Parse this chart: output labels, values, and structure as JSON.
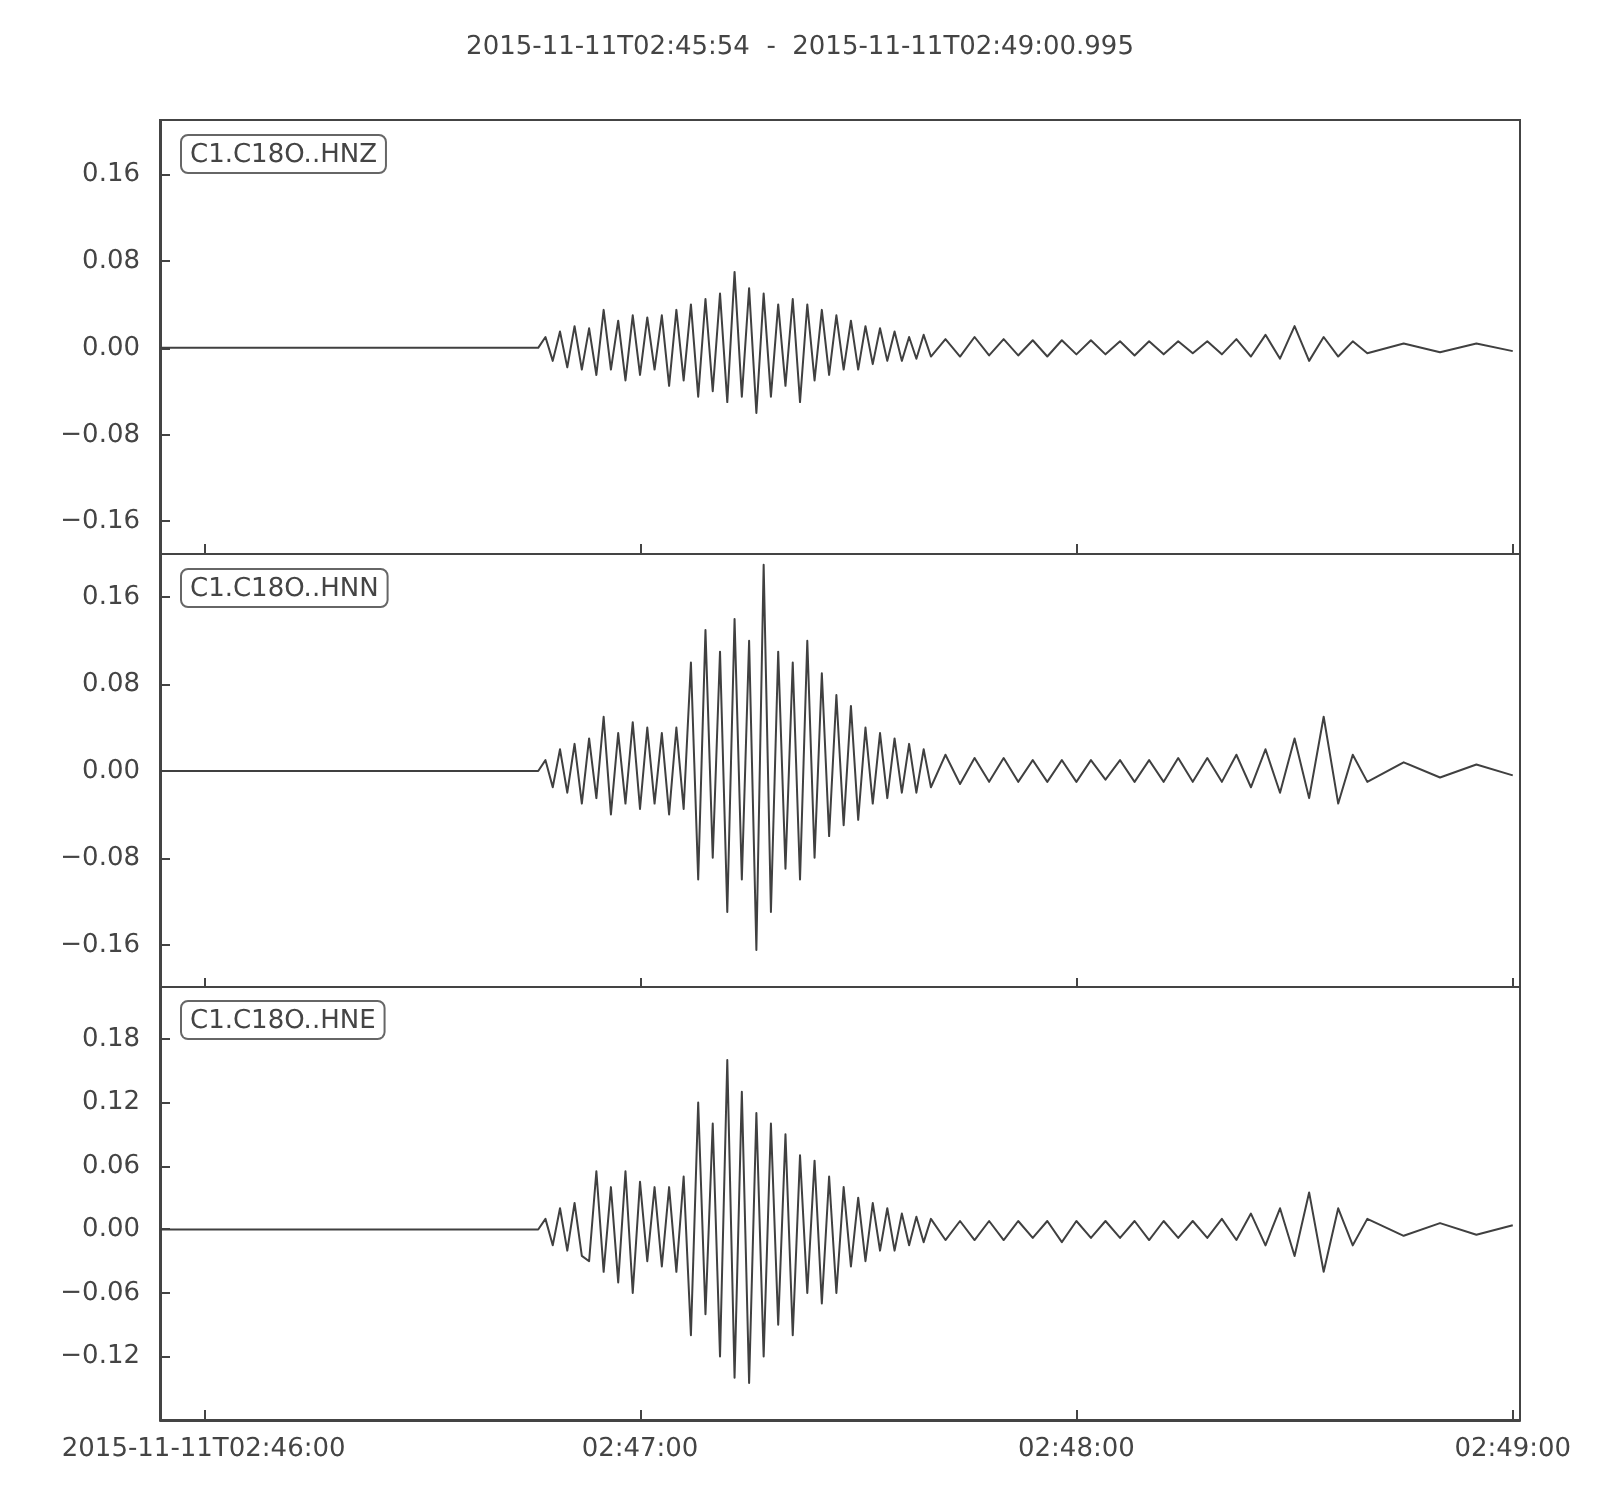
{
  "chart_data": [
    {
      "type": "line",
      "title": "2015-11-11T02:45:54  -  2015-11-11T02:49:00.995",
      "annotations": [
        "C1.C18O..HNZ"
      ],
      "tick_labels": "y",
      "xlim": [
        "2015-11-11T02:45:54",
        "2015-11-11T02:49:00.995"
      ],
      "xticks": [
        {
          "value": "2015-11-11T02:46:00",
          "label": null
        },
        {
          "value": "2015-11-11T02:47:00",
          "label": null
        },
        {
          "value": "2015-11-11T02:48:00",
          "label": null
        },
        {
          "value": "2015-11-11T02:49:00",
          "label": null
        }
      ],
      "ylim": [
        -0.19,
        0.21
      ],
      "yticks": [
        {
          "value": -0.16,
          "label": "−0.16"
        },
        {
          "value": -0.08,
          "label": "−0.08"
        },
        {
          "value": 0,
          "label": "0.00"
        },
        {
          "value": 0.08,
          "label": "0.08"
        },
        {
          "value": 0.16,
          "label": "0.16"
        }
      ],
      "series": [
        {
          "color": "#404040",
          "x": [
            "2015-11-11T02:45:54",
            "2015-11-11T02:46:46",
            "2015-11-11T02:46:47",
            "2015-11-11T02:46:48",
            "2015-11-11T02:46:49",
            "2015-11-11T02:46:50",
            "2015-11-11T02:46:51",
            "2015-11-11T02:46:52",
            "2015-11-11T02:46:53",
            "2015-11-11T02:46:54",
            "2015-11-11T02:46:55",
            "2015-11-11T02:46:56",
            "2015-11-11T02:46:57",
            "2015-11-11T02:46:58",
            "2015-11-11T02:46:59",
            "2015-11-11T02:47:00",
            "2015-11-11T02:47:01",
            "2015-11-11T02:47:02",
            "2015-11-11T02:47:03",
            "2015-11-11T02:47:04",
            "2015-11-11T02:47:05",
            "2015-11-11T02:47:06",
            "2015-11-11T02:47:07",
            "2015-11-11T02:47:08",
            "2015-11-11T02:47:09",
            "2015-11-11T02:47:10",
            "2015-11-11T02:47:11",
            "2015-11-11T02:47:12",
            "2015-11-11T02:47:13",
            "2015-11-11T02:47:14",
            "2015-11-11T02:47:15",
            "2015-11-11T02:47:16",
            "2015-11-11T02:47:17",
            "2015-11-11T02:47:18",
            "2015-11-11T02:47:19",
            "2015-11-11T02:47:20",
            "2015-11-11T02:47:21",
            "2015-11-11T02:47:22",
            "2015-11-11T02:47:23",
            "2015-11-11T02:47:24",
            "2015-11-11T02:47:25",
            "2015-11-11T02:47:26",
            "2015-11-11T02:47:27",
            "2015-11-11T02:47:28",
            "2015-11-11T02:47:29",
            "2015-11-11T02:47:30",
            "2015-11-11T02:47:31",
            "2015-11-11T02:47:32",
            "2015-11-11T02:47:33",
            "2015-11-11T02:47:34",
            "2015-11-11T02:47:35",
            "2015-11-11T02:47:36",
            "2015-11-11T02:47:37",
            "2015-11-11T02:47:38",
            "2015-11-11T02:47:39",
            "2015-11-11T02:47:40",
            "2015-11-11T02:47:42",
            "2015-11-11T02:47:44",
            "2015-11-11T02:47:46",
            "2015-11-11T02:47:48",
            "2015-11-11T02:47:50",
            "2015-11-11T02:47:52",
            "2015-11-11T02:47:54",
            "2015-11-11T02:47:56",
            "2015-11-11T02:47:58",
            "2015-11-11T02:48:00",
            "2015-11-11T02:48:02",
            "2015-11-11T02:48:04",
            "2015-11-11T02:48:06",
            "2015-11-11T02:48:08",
            "2015-11-11T02:48:10",
            "2015-11-11T02:48:12",
            "2015-11-11T02:48:14",
            "2015-11-11T02:48:16",
            "2015-11-11T02:48:18",
            "2015-11-11T02:48:20",
            "2015-11-11T02:48:22",
            "2015-11-11T02:48:24",
            "2015-11-11T02:48:26",
            "2015-11-11T02:48:28",
            "2015-11-11T02:48:30",
            "2015-11-11T02:48:32",
            "2015-11-11T02:48:34",
            "2015-11-11T02:48:36",
            "2015-11-11T02:48:38",
            "2015-11-11T02:48:40",
            "2015-11-11T02:48:45",
            "2015-11-11T02:48:50",
            "2015-11-11T02:48:55",
            "2015-11-11T02:49:00"
          ],
          "values": [
            0,
            0,
            0.01,
            -0.012,
            0.015,
            -0.018,
            0.02,
            -0.02,
            0.018,
            -0.025,
            0.035,
            -0.02,
            0.025,
            -0.03,
            0.03,
            -0.025,
            0.028,
            -0.02,
            0.03,
            -0.035,
            0.035,
            -0.03,
            0.04,
            -0.045,
            0.045,
            -0.04,
            0.05,
            -0.05,
            0.07,
            -0.045,
            0.055,
            -0.06,
            0.05,
            -0.045,
            0.04,
            -0.035,
            0.045,
            -0.05,
            0.04,
            -0.03,
            0.035,
            -0.025,
            0.03,
            -0.02,
            0.025,
            -0.02,
            0.02,
            -0.015,
            0.018,
            -0.012,
            0.015,
            -0.012,
            0.01,
            -0.01,
            0.012,
            -0.008,
            0.008,
            -0.008,
            0.01,
            -0.007,
            0.008,
            -0.007,
            0.007,
            -0.008,
            0.007,
            -0.006,
            0.007,
            -0.006,
            0.006,
            -0.007,
            0.006,
            -0.006,
            0.006,
            -0.005,
            0.006,
            -0.006,
            0.008,
            -0.008,
            0.012,
            -0.01,
            0.02,
            -0.012,
            0.01,
            -0.008,
            0.006,
            -0.005,
            0.004,
            -0.004,
            0.004,
            -0.003
          ]
        }
      ]
    },
    {
      "type": "line",
      "annotations": [
        "C1.C18O..HNN"
      ],
      "tick_labels": "y",
      "xlim": [
        "2015-11-11T02:45:54",
        "2015-11-11T02:49:00.995"
      ],
      "xticks": [
        {
          "value": "2015-11-11T02:46:00",
          "label": null
        },
        {
          "value": "2015-11-11T02:47:00",
          "label": null
        },
        {
          "value": "2015-11-11T02:48:00",
          "label": null
        },
        {
          "value": "2015-11-11T02:49:00",
          "label": null
        }
      ],
      "ylim": [
        -0.2,
        0.2
      ],
      "yticks": [
        {
          "value": -0.16,
          "label": "−0.16"
        },
        {
          "value": -0.08,
          "label": "−0.08"
        },
        {
          "value": 0,
          "label": "0.00"
        },
        {
          "value": 0.08,
          "label": "0.08"
        },
        {
          "value": 0.16,
          "label": "0.16"
        }
      ],
      "series": [
        {
          "color": "#404040",
          "x": [
            "2015-11-11T02:45:54",
            "2015-11-11T02:46:46",
            "2015-11-11T02:46:47",
            "2015-11-11T02:46:48",
            "2015-11-11T02:46:49",
            "2015-11-11T02:46:50",
            "2015-11-11T02:46:51",
            "2015-11-11T02:46:52",
            "2015-11-11T02:46:53",
            "2015-11-11T02:46:54",
            "2015-11-11T02:46:55",
            "2015-11-11T02:46:56",
            "2015-11-11T02:46:57",
            "2015-11-11T02:46:58",
            "2015-11-11T02:46:59",
            "2015-11-11T02:47:00",
            "2015-11-11T02:47:01",
            "2015-11-11T02:47:02",
            "2015-11-11T02:47:03",
            "2015-11-11T02:47:04",
            "2015-11-11T02:47:05",
            "2015-11-11T02:47:06",
            "2015-11-11T02:47:07",
            "2015-11-11T02:47:08",
            "2015-11-11T02:47:09",
            "2015-11-11T02:47:10",
            "2015-11-11T02:47:11",
            "2015-11-11T02:47:12",
            "2015-11-11T02:47:13",
            "2015-11-11T02:47:14",
            "2015-11-11T02:47:15",
            "2015-11-11T02:47:16",
            "2015-11-11T02:47:17",
            "2015-11-11T02:47:18",
            "2015-11-11T02:47:19",
            "2015-11-11T02:47:20",
            "2015-11-11T02:47:21",
            "2015-11-11T02:47:22",
            "2015-11-11T02:47:23",
            "2015-11-11T02:47:24",
            "2015-11-11T02:47:25",
            "2015-11-11T02:47:26",
            "2015-11-11T02:47:27",
            "2015-11-11T02:47:28",
            "2015-11-11T02:47:29",
            "2015-11-11T02:47:30",
            "2015-11-11T02:47:31",
            "2015-11-11T02:47:32",
            "2015-11-11T02:47:33",
            "2015-11-11T02:47:34",
            "2015-11-11T02:47:35",
            "2015-11-11T02:47:36",
            "2015-11-11T02:47:37",
            "2015-11-11T02:47:38",
            "2015-11-11T02:47:39",
            "2015-11-11T02:47:40",
            "2015-11-11T02:47:42",
            "2015-11-11T02:47:44",
            "2015-11-11T02:47:46",
            "2015-11-11T02:47:48",
            "2015-11-11T02:47:50",
            "2015-11-11T02:47:52",
            "2015-11-11T02:47:54",
            "2015-11-11T02:47:56",
            "2015-11-11T02:47:58",
            "2015-11-11T02:48:00",
            "2015-11-11T02:48:02",
            "2015-11-11T02:48:04",
            "2015-11-11T02:48:06",
            "2015-11-11T02:48:08",
            "2015-11-11T02:48:10",
            "2015-11-11T02:48:12",
            "2015-11-11T02:48:14",
            "2015-11-11T02:48:16",
            "2015-11-11T02:48:18",
            "2015-11-11T02:48:20",
            "2015-11-11T02:48:22",
            "2015-11-11T02:48:24",
            "2015-11-11T02:48:26",
            "2015-11-11T02:48:28",
            "2015-11-11T02:48:30",
            "2015-11-11T02:48:32",
            "2015-11-11T02:48:34",
            "2015-11-11T02:48:36",
            "2015-11-11T02:48:38",
            "2015-11-11T02:48:40",
            "2015-11-11T02:48:45",
            "2015-11-11T02:48:50",
            "2015-11-11T02:48:55",
            "2015-11-11T02:49:00"
          ],
          "values": [
            0,
            0,
            0.01,
            -0.015,
            0.02,
            -0.02,
            0.025,
            -0.03,
            0.03,
            -0.025,
            0.05,
            -0.04,
            0.035,
            -0.03,
            0.045,
            -0.035,
            0.04,
            -0.03,
            0.035,
            -0.04,
            0.04,
            -0.035,
            0.1,
            -0.1,
            0.13,
            -0.08,
            0.11,
            -0.13,
            0.14,
            -0.1,
            0.12,
            -0.165,
            0.19,
            -0.13,
            0.11,
            -0.09,
            0.1,
            -0.1,
            0.12,
            -0.08,
            0.09,
            -0.06,
            0.07,
            -0.05,
            0.06,
            -0.045,
            0.04,
            -0.03,
            0.035,
            -0.025,
            0.03,
            -0.02,
            0.025,
            -0.02,
            0.02,
            -0.015,
            0.015,
            -0.012,
            0.012,
            -0.01,
            0.012,
            -0.01,
            0.01,
            -0.01,
            0.01,
            -0.01,
            0.01,
            -0.008,
            0.01,
            -0.01,
            0.01,
            -0.01,
            0.012,
            -0.01,
            0.012,
            -0.01,
            0.015,
            -0.015,
            0.02,
            -0.02,
            0.03,
            -0.025,
            0.05,
            -0.03,
            0.015,
            -0.01,
            0.008,
            -0.006,
            0.006,
            -0.004
          ]
        }
      ]
    },
    {
      "type": "line",
      "annotations": [
        "C1.C18O..HNE"
      ],
      "xlim": [
        "2015-11-11T02:45:54",
        "2015-11-11T02:49:00.995"
      ],
      "xticks": [
        {
          "value": "2015-11-11T02:46:00",
          "label": "2015-11-11T02:46:00"
        },
        {
          "value": "2015-11-11T02:47:00",
          "label": "02:47:00"
        },
        {
          "value": "2015-11-11T02:48:00",
          "label": "02:48:00"
        },
        {
          "value": "2015-11-11T02:49:00",
          "label": "02:49:00"
        }
      ],
      "ylim": [
        -0.18,
        0.23
      ],
      "yticks": [
        {
          "value": -0.12,
          "label": "−0.12"
        },
        {
          "value": -0.06,
          "label": "−0.06"
        },
        {
          "value": 0,
          "label": "0.00"
        },
        {
          "value": 0.06,
          "label": "0.06"
        },
        {
          "value": 0.12,
          "label": "0.12"
        },
        {
          "value": 0.18,
          "label": "0.18"
        }
      ],
      "series": [
        {
          "color": "#404040",
          "x": [
            "2015-11-11T02:45:54",
            "2015-11-11T02:46:46",
            "2015-11-11T02:46:47",
            "2015-11-11T02:46:48",
            "2015-11-11T02:46:49",
            "2015-11-11T02:46:50",
            "2015-11-11T02:46:51",
            "2015-11-11T02:46:52",
            "2015-11-11T02:46:53",
            "2015-11-11T02:46:54",
            "2015-11-11T02:46:55",
            "2015-11-11T02:46:56",
            "2015-11-11T02:46:57",
            "2015-11-11T02:46:58",
            "2015-11-11T02:46:59",
            "2015-11-11T02:47:00",
            "2015-11-11T02:47:01",
            "2015-11-11T02:47:02",
            "2015-11-11T02:47:03",
            "2015-11-11T02:47:04",
            "2015-11-11T02:47:05",
            "2015-11-11T02:47:06",
            "2015-11-11T02:47:07",
            "2015-11-11T02:47:08",
            "2015-11-11T02:47:09",
            "2015-11-11T02:47:10",
            "2015-11-11T02:47:11",
            "2015-11-11T02:47:12",
            "2015-11-11T02:47:13",
            "2015-11-11T02:47:14",
            "2015-11-11T02:47:15",
            "2015-11-11T02:47:16",
            "2015-11-11T02:47:17",
            "2015-11-11T02:47:18",
            "2015-11-11T02:47:19",
            "2015-11-11T02:47:20",
            "2015-11-11T02:47:21",
            "2015-11-11T02:47:22",
            "2015-11-11T02:47:23",
            "2015-11-11T02:47:24",
            "2015-11-11T02:47:25",
            "2015-11-11T02:47:26",
            "2015-11-11T02:47:27",
            "2015-11-11T02:47:28",
            "2015-11-11T02:47:29",
            "2015-11-11T02:47:30",
            "2015-11-11T02:47:31",
            "2015-11-11T02:47:32",
            "2015-11-11T02:47:33",
            "2015-11-11T02:47:34",
            "2015-11-11T02:47:35",
            "2015-11-11T02:47:36",
            "2015-11-11T02:47:37",
            "2015-11-11T02:47:38",
            "2015-11-11T02:47:39",
            "2015-11-11T02:47:40",
            "2015-11-11T02:47:42",
            "2015-11-11T02:47:44",
            "2015-11-11T02:47:46",
            "2015-11-11T02:47:48",
            "2015-11-11T02:47:50",
            "2015-11-11T02:47:52",
            "2015-11-11T02:47:54",
            "2015-11-11T02:47:56",
            "2015-11-11T02:47:58",
            "2015-11-11T02:48:00",
            "2015-11-11T02:48:02",
            "2015-11-11T02:48:04",
            "2015-11-11T02:48:06",
            "2015-11-11T02:48:08",
            "2015-11-11T02:48:10",
            "2015-11-11T02:48:12",
            "2015-11-11T02:48:14",
            "2015-11-11T02:48:16",
            "2015-11-11T02:48:18",
            "2015-11-11T02:48:20",
            "2015-11-11T02:48:22",
            "2015-11-11T02:48:24",
            "2015-11-11T02:48:26",
            "2015-11-11T02:48:28",
            "2015-11-11T02:48:30",
            "2015-11-11T02:48:32",
            "2015-11-11T02:48:34",
            "2015-11-11T02:48:36",
            "2015-11-11T02:48:38",
            "2015-11-11T02:48:40",
            "2015-11-11T02:48:45",
            "2015-11-11T02:48:50",
            "2015-11-11T02:48:55",
            "2015-11-11T02:49:00"
          ],
          "values": [
            0,
            0,
            0.01,
            -0.015,
            0.02,
            -0.02,
            0.025,
            -0.025,
            -0.03,
            0.055,
            -0.04,
            0.04,
            -0.05,
            0.055,
            -0.06,
            0.045,
            -0.03,
            0.04,
            -0.035,
            0.04,
            -0.04,
            0.05,
            -0.1,
            0.12,
            -0.08,
            0.1,
            -0.12,
            0.16,
            -0.14,
            0.13,
            -0.145,
            0.11,
            -0.12,
            0.1,
            -0.09,
            0.09,
            -0.1,
            0.07,
            -0.06,
            0.065,
            -0.07,
            0.05,
            -0.06,
            0.04,
            -0.035,
            0.03,
            -0.03,
            0.025,
            -0.02,
            0.02,
            -0.02,
            0.015,
            -0.015,
            0.012,
            -0.012,
            0.01,
            -0.01,
            0.008,
            -0.01,
            0.008,
            -0.01,
            0.008,
            -0.008,
            0.008,
            -0.012,
            0.008,
            -0.008,
            0.008,
            -0.008,
            0.008,
            -0.01,
            0.008,
            -0.008,
            0.008,
            -0.008,
            0.01,
            -0.01,
            0.015,
            -0.015,
            0.02,
            -0.025,
            0.035,
            -0.04,
            0.02,
            -0.015,
            0.01,
            -0.006,
            0.006,
            -0.005,
            0.004
          ]
        }
      ]
    }
  ]
}
